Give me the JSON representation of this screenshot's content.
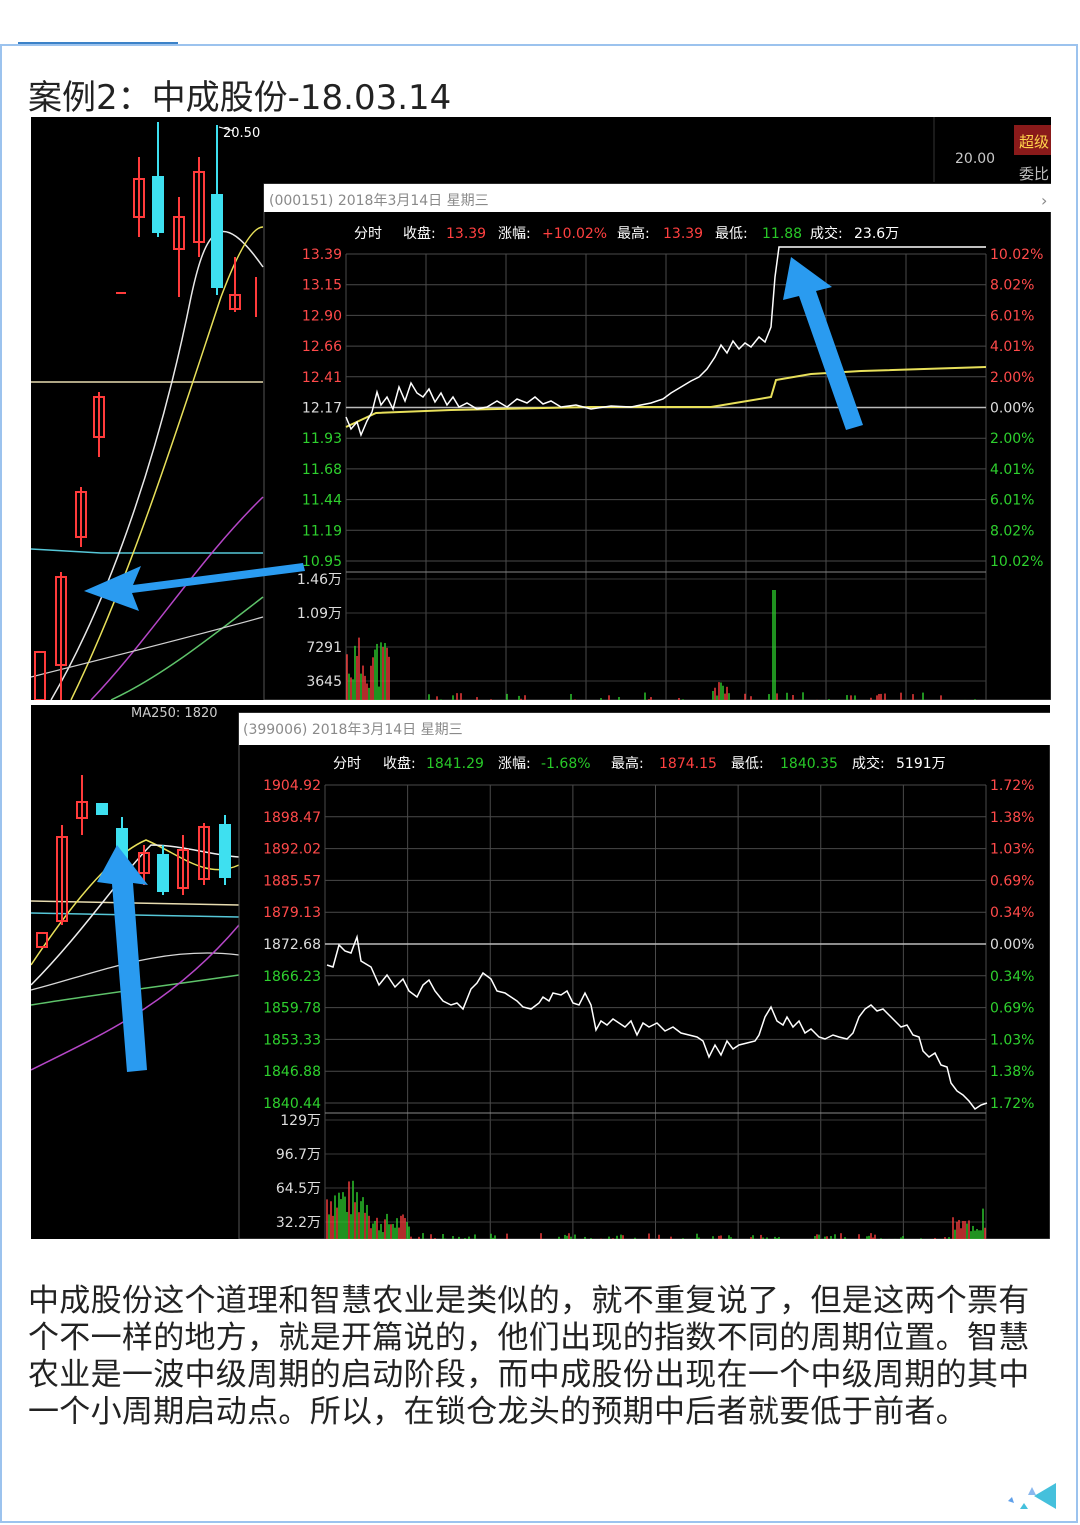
{
  "article": {
    "title": "案例2：中成股份-18.03.14",
    "paragraph": "中成股份这个道理和智慧农业是类似的，就不重复说了，但是这两个票有个不一样的地方，就是开篇说的，他们出现的指数不同的周期位置。智慧农业是一波中级周期的启动阶段，而中成股份出现在一个中级周期的其中一个小周期启动点。所以，在锁仓龙头的预期中后者就要低于前者。"
  },
  "chart_top": {
    "kline_high_label": "20.50",
    "kline_right_price": "20.00",
    "side_tag_1": "超级",
    "side_tag_2": "委比",
    "popup_title": "(000151) 2018年3月14日 星期三",
    "close_icon": "close-icon",
    "info": {
      "label_fenshi": "分时",
      "label_close": "收盘:",
      "close": "13.39",
      "label_change": "涨幅:",
      "change": "+10.02%",
      "label_high": "最高:",
      "high": "13.39",
      "label_low": "最低:",
      "low": "11.88",
      "label_volume": "成交:",
      "volume": "23.6万"
    },
    "price_ticks": [
      "13.39",
      "13.15",
      "12.90",
      "12.66",
      "12.41",
      "12.17",
      "11.93",
      "11.68",
      "11.44",
      "11.19",
      "10.95"
    ],
    "pct_ticks": [
      "10.02%",
      "8.02%",
      "6.01%",
      "4.01%",
      "2.00%",
      "0.00%",
      "2.00%",
      "4.01%",
      "6.01%",
      "8.02%",
      "10.02%"
    ],
    "volume_ticks": [
      "1.46万",
      "1.09万",
      "7291",
      "3645"
    ],
    "colors": {
      "up": "#ff3b3b",
      "down": "#28c828",
      "price_line": "#ffffff",
      "avg_line": "#e8e05a",
      "arrow": "#2a9bf0"
    }
  },
  "chart_bottom": {
    "kline_header": "MA250: 1820",
    "popup_title": "(399006) 2018年3月14日 星期三",
    "info": {
      "label_fenshi": "分时",
      "label_close": "收盘:",
      "close": "1841.29",
      "label_change": "涨幅:",
      "change": "-1.68%",
      "label_high": "最高:",
      "high": "1874.15",
      "label_low": "最低:",
      "low": "1840.35",
      "label_volume": "成交:",
      "volume": "5191万"
    },
    "price_ticks": [
      "1904.92",
      "1898.47",
      "1892.02",
      "1885.57",
      "1879.13",
      "1872.68",
      "1866.23",
      "1859.78",
      "1853.33",
      "1846.88",
      "1840.44"
    ],
    "pct_ticks": [
      "1.72%",
      "1.38%",
      "1.03%",
      "0.69%",
      "0.34%",
      "0.00%",
      "0.34%",
      "0.69%",
      "1.03%",
      "1.38%",
      "1.72%"
    ],
    "volume_ticks": [
      "129万",
      "96.7万",
      "64.5万",
      "32.2万"
    ]
  },
  "decoration": {
    "icon": "triangle-logo-icon"
  }
}
